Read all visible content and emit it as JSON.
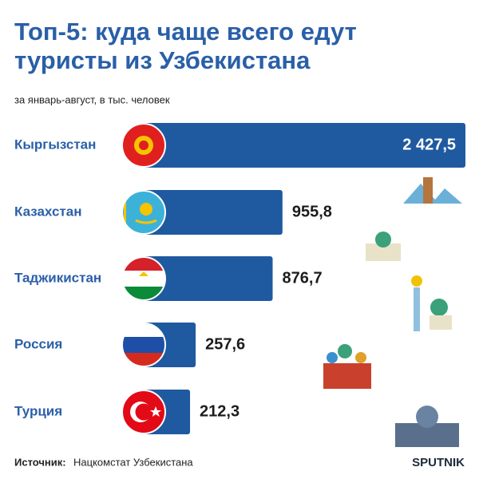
{
  "chart_data": {
    "type": "bar",
    "orientation": "horizontal",
    "title": [
      "Топ-5: куда чаще всего едут",
      "туристы из Узбекистана"
    ],
    "subtitle": "за январь-август, в тыс. человек",
    "categories": [
      "Кыргызстан",
      "Казахстан",
      "Таджикистан",
      "Россия",
      "Турция"
    ],
    "values": [
      2427.5,
      955.8,
      876.7,
      257.6,
      212.3
    ],
    "value_labels": [
      "2 427,5",
      "955,8",
      "876,7",
      "257,6",
      "212,3"
    ],
    "color": "#1f5aa0",
    "source_label": "Источник:",
    "source": "Нацкомстат Узбекистана",
    "logo": "SPUTNIK"
  }
}
